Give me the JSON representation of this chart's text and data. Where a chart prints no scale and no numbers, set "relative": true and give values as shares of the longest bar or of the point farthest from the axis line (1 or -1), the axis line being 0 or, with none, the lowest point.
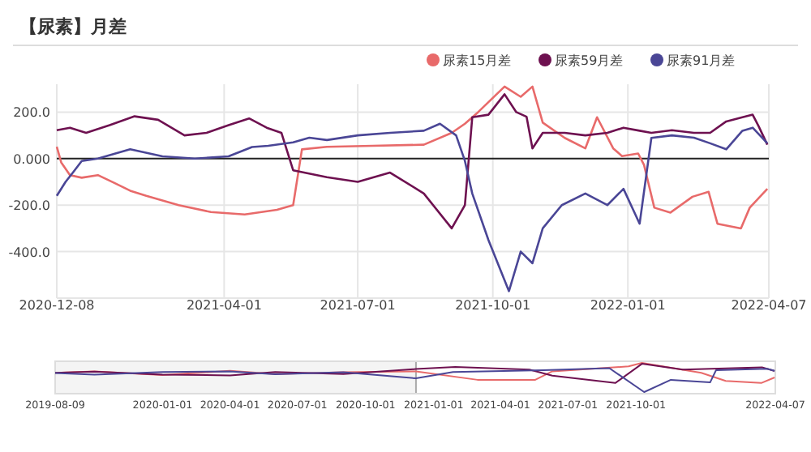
{
  "chart_data": [
    {
      "type": "line",
      "title": "【尿素】月差",
      "legend": "top right",
      "grid": true,
      "marker": "none",
      "line_style": "solid",
      "xlim": [
        "2020-12-08",
        "2022-04-07"
      ],
      "xticks": [
        {
          "value": "2020-12-08",
          "label": "2020-12-08"
        },
        {
          "value": "2021-04-01",
          "label": "2021-04-01"
        },
        {
          "value": "2021-07-01",
          "label": "2021-07-01"
        },
        {
          "value": "2021-10-01",
          "label": "2021-10-01"
        },
        {
          "value": "2022-01-01",
          "label": "2022-01-01"
        },
        {
          "value": "2022-04-07",
          "label": "2022-04-07"
        }
      ],
      "ylim": [
        -600,
        320
      ],
      "yticks": [
        {
          "value": -600,
          "label": null
        },
        {
          "value": -400,
          "label": "-400.0"
        },
        {
          "value": -200,
          "label": "-200.0"
        },
        {
          "value": 0,
          "label": "0.000"
        },
        {
          "value": 200,
          "label": "200.0"
        }
      ],
      "series": [
        {
          "name": "尿素15月差",
          "color": "#e86a6a",
          "x": [
            "2020-12-08",
            "2020-12-11",
            "2020-12-17",
            "2020-12-25",
            "2021-01-05",
            "2021-01-16",
            "2021-01-27",
            "2021-02-07",
            "2021-03-01",
            "2021-03-23",
            "2021-04-15",
            "2021-05-07",
            "2021-05-18",
            "2021-05-24",
            "2021-06-10",
            "2021-07-11",
            "2021-08-15",
            "2021-09-03",
            "2021-09-12",
            "2021-09-21",
            "2021-10-09",
            "2021-10-20",
            "2021-10-28",
            "2021-11-04",
            "2021-11-19",
            "2021-12-03",
            "2021-12-11",
            "2021-12-22",
            "2021-12-28",
            "2022-01-08",
            "2022-01-12",
            "2022-01-19",
            "2022-01-30",
            "2022-02-14",
            "2022-02-25",
            "2022-03-03",
            "2022-03-19",
            "2022-03-25",
            "2022-04-06"
          ],
          "values": [
            51,
            -16,
            -71,
            -82,
            -71,
            -104,
            -138,
            -160,
            -200,
            -230,
            -240,
            -220,
            -200,
            40,
            51,
            55,
            60,
            111,
            150,
            200,
            310,
            266,
            310,
            155,
            89,
            44,
            178,
            44,
            11,
            22,
            -27,
            -211,
            -232,
            -164,
            -143,
            -280,
            -300,
            -211,
            -130
          ]
        },
        {
          "name": "尿素59月差",
          "color": "#6e1150",
          "x": [
            "2020-12-08",
            "2020-12-17",
            "2020-12-28",
            "2021-01-13",
            "2021-01-30",
            "2021-02-15",
            "2021-03-05",
            "2021-03-20",
            "2021-04-04",
            "2021-04-18",
            "2021-04-30",
            "2021-05-10",
            "2021-05-18",
            "2021-06-10",
            "2021-07-01",
            "2021-07-23",
            "2021-08-15",
            "2021-09-03",
            "2021-09-12",
            "2021-09-17",
            "2021-09-28",
            "2021-10-09",
            "2021-10-17",
            "2021-10-24",
            "2021-10-28",
            "2021-11-04",
            "2021-11-19",
            "2021-12-03",
            "2021-12-18",
            "2021-12-29",
            "2022-01-09",
            "2022-01-17",
            "2022-01-31",
            "2022-02-15",
            "2022-02-26",
            "2022-03-09",
            "2022-03-20",
            "2022-03-27",
            "2022-03-31",
            "2022-04-06"
          ],
          "values": [
            122,
            133,
            111,
            144,
            182,
            167,
            100,
            111,
            144,
            173,
            133,
            111,
            -50,
            -80,
            -100,
            -60,
            -150,
            -300,
            -200,
            178,
            189,
            277,
            200,
            180,
            44,
            111,
            111,
            100,
            111,
            133,
            120,
            111,
            122,
            111,
            111,
            160,
            178,
            189,
            140,
            60
          ]
        },
        {
          "name": "尿素91月差",
          "color": "#4a4696",
          "x": [
            "2020-12-08",
            "2020-12-14",
            "2020-12-19",
            "2020-12-25",
            "2021-01-05",
            "2021-01-16",
            "2021-01-27",
            "2021-02-18",
            "2021-03-12",
            "2021-04-04",
            "2021-04-20",
            "2021-05-01",
            "2021-05-18",
            "2021-05-29",
            "2021-06-10",
            "2021-07-01",
            "2021-07-23",
            "2021-08-15",
            "2021-08-26",
            "2021-09-06",
            "2021-09-12",
            "2021-09-17",
            "2021-09-28",
            "2021-10-12",
            "2021-10-20",
            "2021-10-28",
            "2021-11-04",
            "2021-11-17",
            "2021-12-03",
            "2021-12-18",
            "2021-12-29",
            "2022-01-09",
            "2022-01-17",
            "2022-01-31",
            "2022-02-15",
            "2022-02-26",
            "2022-03-09",
            "2022-03-20",
            "2022-03-27",
            "2022-04-06"
          ],
          "values": [
            -160,
            -100,
            -60,
            -10,
            0,
            20,
            40,
            10,
            0,
            10,
            50,
            55,
            70,
            90,
            80,
            100,
            111,
            120,
            150,
            100,
            -10,
            -150,
            -350,
            -570,
            -400,
            -450,
            -300,
            -200,
            -150,
            -200,
            -130,
            -280,
            89,
            100,
            90,
            66,
            40,
            120,
            133,
            66
          ]
        }
      ]
    },
    {
      "type": "line",
      "relative": true,
      "tick_labels": "x",
      "marker": "none",
      "line_style": "solid",
      "xlim": [
        "2019-08-09",
        "2022-04-07"
      ],
      "xticks": [
        {
          "value": "2019-08-09",
          "label": "2019-08-09"
        },
        {
          "value": "2020-01-01",
          "label": "2020-01-01"
        },
        {
          "value": "2020-04-01",
          "label": "2020-04-01"
        },
        {
          "value": "2020-07-01",
          "label": "2020-07-01"
        },
        {
          "value": "2020-10-01",
          "label": "2020-10-01"
        },
        {
          "value": "2021-01-01",
          "label": "2021-01-01"
        },
        {
          "value": "2021-04-01",
          "label": "2021-04-01"
        },
        {
          "value": "2021-07-01",
          "label": "2021-07-01"
        },
        {
          "value": "2021-10-01",
          "label": "2021-10-01"
        },
        {
          "value": "2022-04-07",
          "label": "2022-04-07"
        }
      ],
      "bands": [
        {
          "axis": "x",
          "from": "2019-08-09",
          "to": "2020-12-08",
          "color": "#f4f4f4"
        }
      ],
      "series": [
        {
          "color": "#e86a6a",
          "x": [
            "2019-08-09",
            "2019-10-01",
            "2020-01-01",
            "2020-04-01",
            "2020-06-01",
            "2020-09-01",
            "2020-12-08",
            "2021-03-01",
            "2021-05-18",
            "2021-06-10",
            "2021-09-21",
            "2021-10-09",
            "2021-12-28",
            "2022-01-30",
            "2022-03-19",
            "2022-04-06"
          ],
          "values": [
            0.66,
            0.71,
            0.58,
            0.73,
            0.62,
            0.68,
            0.71,
            0.42,
            0.42,
            0.71,
            0.88,
            1,
            0.66,
            0.38,
            0.31,
            0.5
          ]
        },
        {
          "color": "#6e1150",
          "x": [
            "2019-08-09",
            "2019-10-01",
            "2020-01-01",
            "2020-04-01",
            "2020-06-01",
            "2020-09-01",
            "2020-12-08",
            "2021-01-30",
            "2021-05-10",
            "2021-06-10",
            "2021-09-03",
            "2021-10-09",
            "2021-12-03",
            "2022-03-20",
            "2022-04-06"
          ],
          "values": [
            0.66,
            0.7,
            0.6,
            0.57,
            0.69,
            0.62,
            0.79,
            0.86,
            0.77,
            0.56,
            0.31,
            0.97,
            0.77,
            0.85,
            0.72
          ]
        },
        {
          "color": "#4a4696",
          "x": [
            "2019-08-09",
            "2019-10-01",
            "2020-01-01",
            "2020-04-01",
            "2020-06-01",
            "2020-09-01",
            "2020-12-08",
            "2021-01-27",
            "2021-05-29",
            "2021-08-26",
            "2021-10-12",
            "2021-11-17",
            "2022-01-09",
            "2022-01-17",
            "2022-03-27",
            "2022-04-06"
          ],
          "values": [
            0.65,
            0.6,
            0.69,
            0.71,
            0.61,
            0.68,
            0.47,
            0.69,
            0.75,
            0.82,
            0,
            0.42,
            0.33,
            0.75,
            0.8,
            0.73
          ]
        }
      ]
    }
  ]
}
